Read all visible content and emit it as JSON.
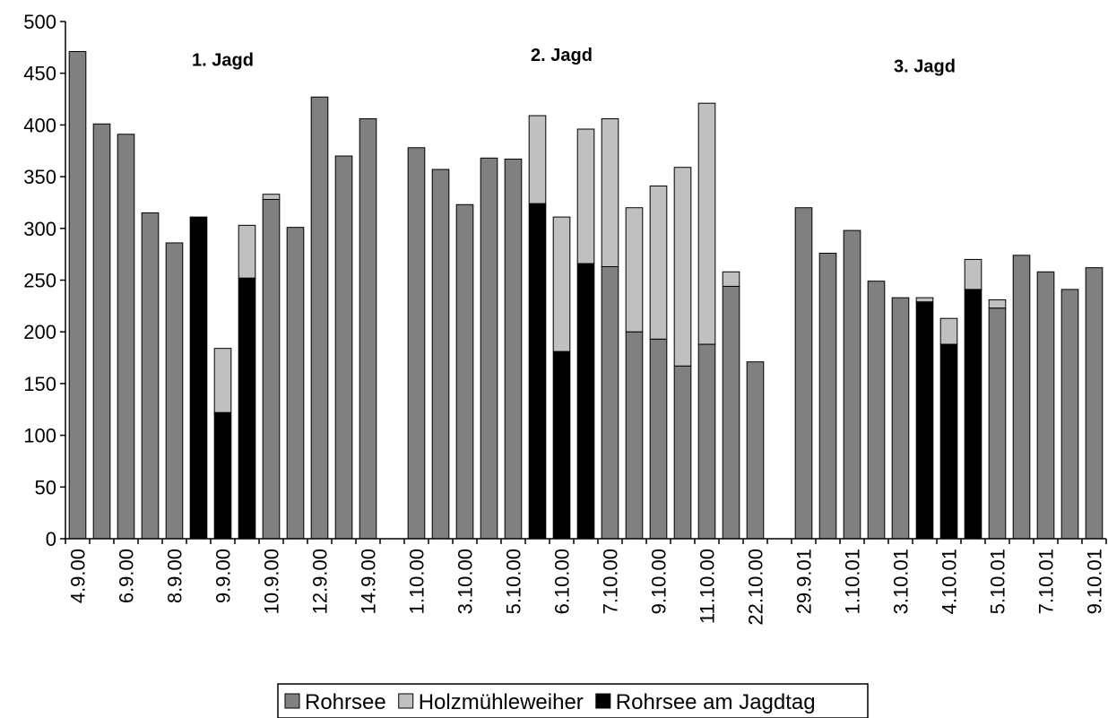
{
  "chart_data": {
    "type": "bar",
    "stacked": true,
    "ylim": [
      0,
      500
    ],
    "yticks": [
      0,
      50,
      100,
      150,
      200,
      250,
      300,
      350,
      400,
      450,
      500
    ],
    "grid": false,
    "legend_position": "bottom",
    "series": [
      {
        "name": "Rohrsee",
        "color": "#808080"
      },
      {
        "name": "Holzmühleweiher",
        "color": "#c0c0c0"
      },
      {
        "name": "Rohrsee am Jagdtag",
        "color": "#000000"
      }
    ],
    "bars": [
      {
        "x": "4.9.00",
        "base": 471,
        "holz": 0,
        "jagdtag": false
      },
      {
        "x": "",
        "base": 401,
        "holz": 0,
        "jagdtag": false
      },
      {
        "x": "6.9.00",
        "base": 391,
        "holz": 0,
        "jagdtag": false
      },
      {
        "x": "",
        "base": 315,
        "holz": 0,
        "jagdtag": false
      },
      {
        "x": "8.9.00",
        "base": 286,
        "holz": 0,
        "jagdtag": false
      },
      {
        "x": "",
        "base": 311,
        "holz": 0,
        "jagdtag": true
      },
      {
        "x": "9.9.00",
        "base": 122,
        "holz": 62,
        "jagdtag": true
      },
      {
        "x": "",
        "base": 252,
        "holz": 51,
        "jagdtag": true
      },
      {
        "x": "10.9.00",
        "base": 328,
        "holz": 5,
        "jagdtag": false
      },
      {
        "x": "",
        "base": 301,
        "holz": 0,
        "jagdtag": false
      },
      {
        "x": "12.9.00",
        "base": 427,
        "holz": 0,
        "jagdtag": false
      },
      {
        "x": "",
        "base": 370,
        "holz": 0,
        "jagdtag": false
      },
      {
        "x": "14.9.00",
        "base": 406,
        "holz": 0,
        "jagdtag": false
      },
      {
        "x": "",
        "base": null,
        "holz": 0,
        "jagdtag": false
      },
      {
        "x": "1.10.00",
        "base": 378,
        "holz": 0,
        "jagdtag": false
      },
      {
        "x": "",
        "base": 357,
        "holz": 0,
        "jagdtag": false
      },
      {
        "x": "3.10.00",
        "base": 323,
        "holz": 0,
        "jagdtag": false
      },
      {
        "x": "",
        "base": 368,
        "holz": 0,
        "jagdtag": false
      },
      {
        "x": "5.10.00",
        "base": 367,
        "holz": 0,
        "jagdtag": false
      },
      {
        "x": "",
        "base": 324,
        "holz": 85,
        "jagdtag": true
      },
      {
        "x": "6.10.00",
        "base": 181,
        "holz": 130,
        "jagdtag": true
      },
      {
        "x": "",
        "base": 266,
        "holz": 130,
        "jagdtag": true
      },
      {
        "x": "7.10.00",
        "base": 263,
        "holz": 143,
        "jagdtag": false
      },
      {
        "x": "",
        "base": 200,
        "holz": 120,
        "jagdtag": false
      },
      {
        "x": "9.10.00",
        "base": 193,
        "holz": 148,
        "jagdtag": false
      },
      {
        "x": "",
        "base": 167,
        "holz": 192,
        "jagdtag": false
      },
      {
        "x": "11.10.00",
        "base": 188,
        "holz": 233,
        "jagdtag": false
      },
      {
        "x": "",
        "base": 244,
        "holz": 14,
        "jagdtag": false
      },
      {
        "x": "22.10.00",
        "base": 171,
        "holz": 0,
        "jagdtag": false
      },
      {
        "x": "",
        "base": null,
        "holz": 0,
        "jagdtag": false
      },
      {
        "x": "29.9.01",
        "base": 320,
        "holz": 0,
        "jagdtag": false
      },
      {
        "x": "",
        "base": 276,
        "holz": 0,
        "jagdtag": false
      },
      {
        "x": "1.10.01",
        "base": 298,
        "holz": 0,
        "jagdtag": false
      },
      {
        "x": "",
        "base": 249,
        "holz": 0,
        "jagdtag": false
      },
      {
        "x": "3.10.01",
        "base": 233,
        "holz": 0,
        "jagdtag": false
      },
      {
        "x": "",
        "base": 229,
        "holz": 4,
        "jagdtag": true
      },
      {
        "x": "4.10.01",
        "base": 188,
        "holz": 25,
        "jagdtag": true
      },
      {
        "x": "",
        "base": 241,
        "holz": 29,
        "jagdtag": true
      },
      {
        "x": "5.10.01",
        "base": 223,
        "holz": 8,
        "jagdtag": false
      },
      {
        "x": "",
        "base": 274,
        "holz": 0,
        "jagdtag": false
      },
      {
        "x": "7.10.01",
        "base": 258,
        "holz": 0,
        "jagdtag": false
      },
      {
        "x": "",
        "base": 241,
        "holz": 0,
        "jagdtag": false
      },
      {
        "x": "9.10.01",
        "base": 262,
        "holz": 0,
        "jagdtag": false
      }
    ],
    "annotations": [
      {
        "text": "1. Jagd",
        "x_index": 6,
        "y": 463
      },
      {
        "text": "2. Jagd",
        "x_index": 20,
        "y": 468
      },
      {
        "text": "3. Jagd",
        "x_index": 35,
        "y": 457
      }
    ]
  }
}
